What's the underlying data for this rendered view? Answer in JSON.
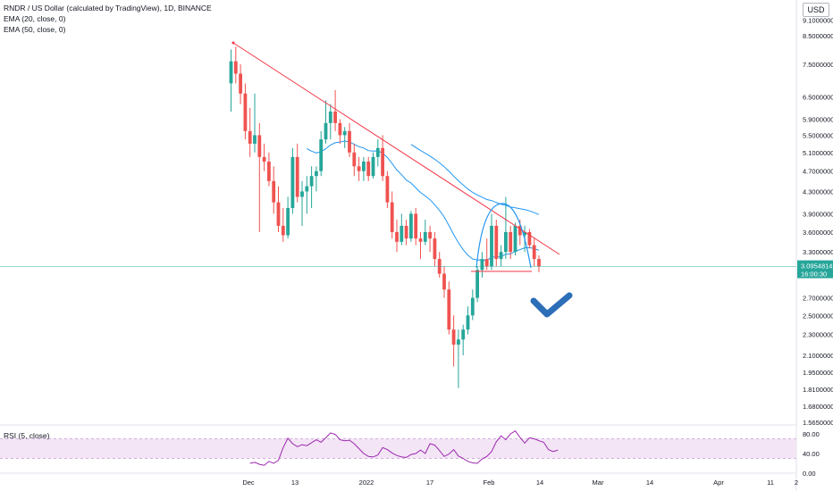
{
  "header": {
    "title": "RNDR / US Dollar (calculated by TradingView), 1D, BINANCE",
    "indicator_ema20": "EMA (20, close, 0)",
    "indicator_ema50": "EMA (50, close, 0)",
    "currency": "USD"
  },
  "rsi_panel": {
    "title": "RSI (5, close)",
    "levels": [
      "80.00",
      "40.00",
      "0.00"
    ],
    "values": [
      20,
      22,
      18,
      16,
      24,
      20,
      26,
      52,
      71,
      60,
      54,
      58,
      56,
      62,
      68,
      63,
      72,
      82,
      79,
      68,
      66,
      67,
      60,
      50,
      40,
      34,
      33,
      37,
      52,
      48,
      41,
      36,
      33,
      32,
      38,
      40,
      47,
      40,
      60,
      57,
      46,
      34,
      39,
      48,
      35,
      30,
      24,
      21,
      20,
      29,
      34,
      44,
      64,
      76,
      68,
      80,
      86,
      73,
      61,
      72,
      70,
      66,
      63,
      48,
      44,
      47
    ]
  },
  "price_marker": {
    "price": "3.0954814",
    "countdown": "16:00:30",
    "color": "#26a69a"
  },
  "colors": {
    "up": "#26a69a",
    "down": "#ef5350",
    "ema": "#2196f3",
    "trendline": "#f23645",
    "rsi": "#9c27b0",
    "rsi_band": "#f3e5f5",
    "arrow": "#2c6eb8"
  },
  "chart_data": {
    "type": "candlestick",
    "interval": "1D",
    "y_scale": "log",
    "price_axis_labels": [
      "9.1000000",
      "8.5000000",
      "7.5000000",
      "6.5000000",
      "5.9000000",
      "5.5000000",
      "5.1000000",
      "4.7000000",
      "4.3000000",
      "3.9000000",
      "3.6000000",
      "3.3000000",
      "2.7000000",
      "2.5000000",
      "2.3000000",
      "2.1000000",
      "1.9500000",
      "1.8100000",
      "1.6800000",
      "1.5650000"
    ],
    "x_axis_labels": [
      "Dec",
      "13",
      "2022",
      "17",
      "Feb",
      "14",
      "Mar",
      "14",
      "Apr",
      "11",
      "2"
    ],
    "candles": [
      {
        "o": 6.9,
        "h": 8.0,
        "l": 6.1,
        "c": 7.6
      },
      {
        "o": 7.6,
        "h": 8.1,
        "l": 6.9,
        "c": 7.2
      },
      {
        "o": 7.2,
        "h": 7.5,
        "l": 6.3,
        "c": 6.6
      },
      {
        "o": 6.6,
        "h": 6.9,
        "l": 5.4,
        "c": 5.6
      },
      {
        "o": 5.6,
        "h": 6.2,
        "l": 5.0,
        "c": 5.3
      },
      {
        "o": 5.3,
        "h": 6.6,
        "l": 5.1,
        "c": 5.5
      },
      {
        "o": 5.5,
        "h": 5.8,
        "l": 3.6,
        "c": 5.0
      },
      {
        "o": 5.0,
        "h": 5.3,
        "l": 4.7,
        "c": 4.9
      },
      {
        "o": 4.9,
        "h": 5.1,
        "l": 4.4,
        "c": 4.5
      },
      {
        "o": 4.5,
        "h": 4.8,
        "l": 3.9,
        "c": 4.1
      },
      {
        "o": 4.1,
        "h": 4.4,
        "l": 3.6,
        "c": 3.7
      },
      {
        "o": 3.7,
        "h": 4.0,
        "l": 3.45,
        "c": 3.55
      },
      {
        "o": 3.55,
        "h": 4.2,
        "l": 3.5,
        "c": 4.0
      },
      {
        "o": 4.0,
        "h": 5.2,
        "l": 3.9,
        "c": 5.0
      },
      {
        "o": 5.0,
        "h": 5.3,
        "l": 4.1,
        "c": 4.2
      },
      {
        "o": 4.2,
        "h": 4.5,
        "l": 3.7,
        "c": 4.3
      },
      {
        "o": 4.3,
        "h": 4.6,
        "l": 3.9,
        "c": 4.4
      },
      {
        "o": 4.4,
        "h": 4.8,
        "l": 4.0,
        "c": 4.6
      },
      {
        "o": 4.6,
        "h": 4.8,
        "l": 4.3,
        "c": 4.7
      },
      {
        "o": 4.7,
        "h": 5.6,
        "l": 4.6,
        "c": 5.4
      },
      {
        "o": 5.4,
        "h": 6.4,
        "l": 5.3,
        "c": 5.8
      },
      {
        "o": 5.8,
        "h": 6.3,
        "l": 5.4,
        "c": 6.1
      },
      {
        "o": 6.1,
        "h": 6.7,
        "l": 5.6,
        "c": 5.8
      },
      {
        "o": 5.8,
        "h": 5.9,
        "l": 5.3,
        "c": 5.5
      },
      {
        "o": 5.5,
        "h": 5.7,
        "l": 5.2,
        "c": 5.6
      },
      {
        "o": 5.6,
        "h": 5.8,
        "l": 5.0,
        "c": 5.1
      },
      {
        "o": 5.1,
        "h": 5.3,
        "l": 4.6,
        "c": 4.8
      },
      {
        "o": 4.8,
        "h": 5.0,
        "l": 4.5,
        "c": 4.7
      },
      {
        "o": 4.7,
        "h": 5.0,
        "l": 4.5,
        "c": 4.9
      },
      {
        "o": 4.9,
        "h": 5.0,
        "l": 4.5,
        "c": 4.6
      },
      {
        "o": 4.6,
        "h": 5.1,
        "l": 4.55,
        "c": 5.0
      },
      {
        "o": 5.0,
        "h": 5.4,
        "l": 4.8,
        "c": 5.2
      },
      {
        "o": 5.2,
        "h": 5.5,
        "l": 4.5,
        "c": 4.6
      },
      {
        "o": 4.6,
        "h": 4.7,
        "l": 4.0,
        "c": 4.1
      },
      {
        "o": 4.1,
        "h": 4.3,
        "l": 3.5,
        "c": 3.6
      },
      {
        "o": 3.6,
        "h": 3.8,
        "l": 3.3,
        "c": 3.45
      },
      {
        "o": 3.45,
        "h": 3.9,
        "l": 3.4,
        "c": 3.7
      },
      {
        "o": 3.7,
        "h": 3.8,
        "l": 3.4,
        "c": 3.5
      },
      {
        "o": 3.5,
        "h": 3.95,
        "l": 3.45,
        "c": 3.9
      },
      {
        "o": 3.9,
        "h": 4.0,
        "l": 3.4,
        "c": 3.5
      },
      {
        "o": 3.5,
        "h": 3.6,
        "l": 3.2,
        "c": 3.45
      },
      {
        "o": 3.45,
        "h": 3.8,
        "l": 3.4,
        "c": 3.6
      },
      {
        "o": 3.6,
        "h": 3.7,
        "l": 3.3,
        "c": 3.5
      },
      {
        "o": 3.5,
        "h": 3.6,
        "l": 3.1,
        "c": 3.2
      },
      {
        "o": 3.2,
        "h": 3.3,
        "l": 2.95,
        "c": 3.0
      },
      {
        "o": 3.0,
        "h": 3.1,
        "l": 2.7,
        "c": 2.8
      },
      {
        "o": 2.8,
        "h": 2.9,
        "l": 2.3,
        "c": 2.35
      },
      {
        "o": 2.35,
        "h": 2.5,
        "l": 2.0,
        "c": 2.2
      },
      {
        "o": 2.2,
        "h": 2.35,
        "l": 1.82,
        "c": 2.25
      },
      {
        "o": 2.25,
        "h": 2.4,
        "l": 2.1,
        "c": 2.35
      },
      {
        "o": 2.35,
        "h": 2.6,
        "l": 2.3,
        "c": 2.5
      },
      {
        "o": 2.5,
        "h": 2.8,
        "l": 2.45,
        "c": 2.7
      },
      {
        "o": 2.7,
        "h": 3.1,
        "l": 2.65,
        "c": 3.05
      },
      {
        "o": 3.05,
        "h": 3.3,
        "l": 2.95,
        "c": 3.2
      },
      {
        "o": 3.2,
        "h": 3.5,
        "l": 3.05,
        "c": 3.1
      },
      {
        "o": 3.1,
        "h": 3.9,
        "l": 3.05,
        "c": 3.7
      },
      {
        "o": 3.7,
        "h": 3.8,
        "l": 3.1,
        "c": 3.2
      },
      {
        "o": 3.2,
        "h": 3.4,
        "l": 3.1,
        "c": 3.3
      },
      {
        "o": 3.3,
        "h": 4.2,
        "l": 3.2,
        "c": 3.6
      },
      {
        "o": 3.6,
        "h": 3.7,
        "l": 3.2,
        "c": 3.3
      },
      {
        "o": 3.3,
        "h": 3.75,
        "l": 3.25,
        "c": 3.7
      },
      {
        "o": 3.7,
        "h": 3.8,
        "l": 3.4,
        "c": 3.55
      },
      {
        "o": 3.55,
        "h": 3.7,
        "l": 3.3,
        "c": 3.6
      },
      {
        "o": 3.6,
        "h": 3.65,
        "l": 3.35,
        "c": 3.4
      },
      {
        "o": 3.4,
        "h": 3.5,
        "l": 3.1,
        "c": 3.2
      },
      {
        "o": 3.2,
        "h": 3.25,
        "l": 3.02,
        "c": 3.1
      }
    ]
  }
}
